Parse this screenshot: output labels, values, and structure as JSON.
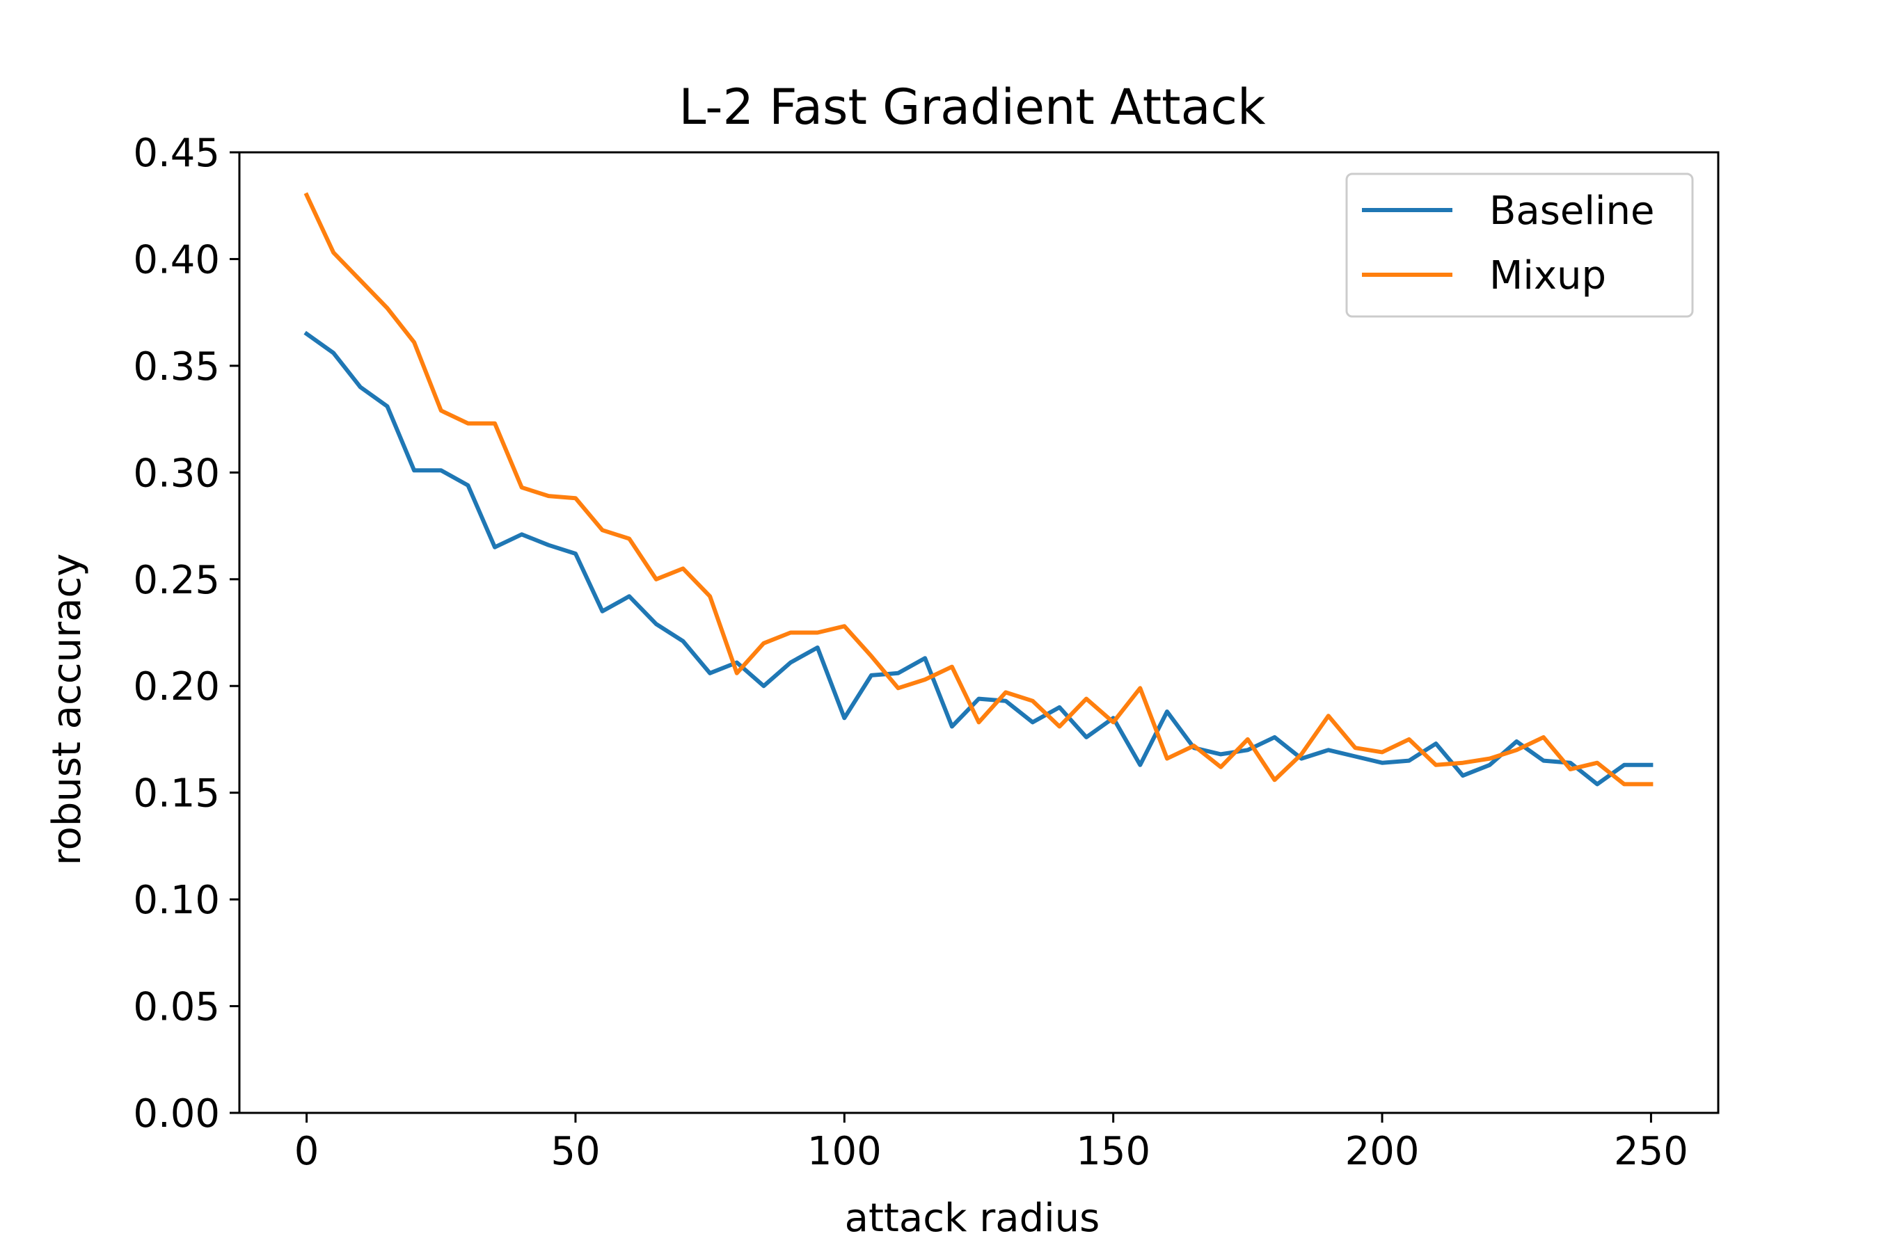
{
  "chart_data": {
    "type": "line",
    "title": "L-2 Fast Gradient Attack",
    "xlabel": "attack radius",
    "ylabel": "robust accuracy",
    "xlim": [
      -12.5,
      262.5
    ],
    "ylim": [
      0,
      0.45
    ],
    "xticks": [
      0,
      50,
      100,
      150,
      200,
      250
    ],
    "xtick_labels": [
      "0",
      "50",
      "100",
      "150",
      "200",
      "250"
    ],
    "yticks": [
      0,
      0.05,
      0.1,
      0.15,
      0.2,
      0.25,
      0.3,
      0.35,
      0.4,
      0.45
    ],
    "ytick_labels": [
      "0.00",
      "0.05",
      "0.10",
      "0.15",
      "0.20",
      "0.25",
      "0.30",
      "0.35",
      "0.40",
      "0.45"
    ],
    "grid": false,
    "legend_position": "top-right",
    "x": [
      0,
      5,
      10,
      15,
      20,
      25,
      30,
      35,
      40,
      45,
      50,
      55,
      60,
      65,
      70,
      75,
      80,
      85,
      90,
      95,
      100,
      105,
      110,
      115,
      120,
      125,
      130,
      135,
      140,
      145,
      150,
      155,
      160,
      165,
      170,
      175,
      180,
      185,
      190,
      195,
      200,
      205,
      210,
      215,
      220,
      225,
      230,
      235,
      240,
      245,
      250
    ],
    "series": [
      {
        "name": "Baseline",
        "color": "#1f77b4",
        "values": [
          0.365,
          0.356,
          0.34,
          0.331,
          0.301,
          0.301,
          0.294,
          0.265,
          0.271,
          0.266,
          0.262,
          0.235,
          0.242,
          0.229,
          0.221,
          0.206,
          0.211,
          0.2,
          0.211,
          0.218,
          0.185,
          0.205,
          0.206,
          0.213,
          0.181,
          0.194,
          0.193,
          0.183,
          0.19,
          0.176,
          0.185,
          0.163,
          0.188,
          0.171,
          0.168,
          0.17,
          0.176,
          0.166,
          0.17,
          0.167,
          0.164,
          0.165,
          0.173,
          0.158,
          0.163,
          0.174,
          0.165,
          0.164,
          0.154,
          0.163,
          0.163
        ]
      },
      {
        "name": "Mixup",
        "color": "#ff7f0e",
        "values": [
          0.43,
          0.403,
          0.39,
          0.377,
          0.361,
          0.329,
          0.323,
          0.323,
          0.293,
          0.289,
          0.288,
          0.273,
          0.269,
          0.25,
          0.255,
          0.242,
          0.206,
          0.22,
          0.225,
          0.225,
          0.228,
          0.214,
          0.199,
          0.203,
          0.209,
          0.183,
          0.197,
          0.193,
          0.181,
          0.194,
          0.183,
          0.199,
          0.166,
          0.172,
          0.162,
          0.175,
          0.156,
          0.168,
          0.186,
          0.171,
          0.169,
          0.175,
          0.163,
          0.164,
          0.166,
          0.17,
          0.176,
          0.161,
          0.164,
          0.154,
          0.154
        ]
      }
    ]
  }
}
